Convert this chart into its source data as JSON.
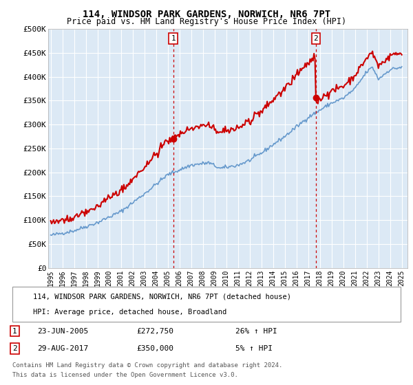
{
  "title": "114, WINDSOR PARK GARDENS, NORWICH, NR6 7PT",
  "subtitle": "Price paid vs. HM Land Registry's House Price Index (HPI)",
  "legend_line1": "114, WINDSOR PARK GARDENS, NORWICH, NR6 7PT (detached house)",
  "legend_line2": "HPI: Average price, detached house, Broadland",
  "sale1_date": "23-JUN-2005",
  "sale1_price": "£272,750",
  "sale1_hpi": "26% ↑ HPI",
  "sale1_year": 2005.47,
  "sale1_value": 272750,
  "sale2_date": "29-AUG-2017",
  "sale2_price": "£350,000",
  "sale2_hpi": "5% ↑ HPI",
  "sale2_year": 2017.66,
  "sale2_value": 350000,
  "footer1": "Contains HM Land Registry data © Crown copyright and database right 2024.",
  "footer2": "This data is licensed under the Open Government Licence v3.0.",
  "plot_bg": "#dce9f5",
  "fig_bg": "#ffffff",
  "red_color": "#cc0000",
  "blue_color": "#6699cc",
  "vline_color": "#cc0000",
  "ylim": [
    0,
    500000
  ],
  "yticks": [
    0,
    50000,
    100000,
    150000,
    200000,
    250000,
    300000,
    350000,
    400000,
    450000,
    500000
  ],
  "ytick_labels": [
    "£0",
    "£50K",
    "£100K",
    "£150K",
    "£200K",
    "£250K",
    "£300K",
    "£350K",
    "£400K",
    "£450K",
    "£500K"
  ],
  "xmin": 1994.8,
  "xmax": 2025.5
}
